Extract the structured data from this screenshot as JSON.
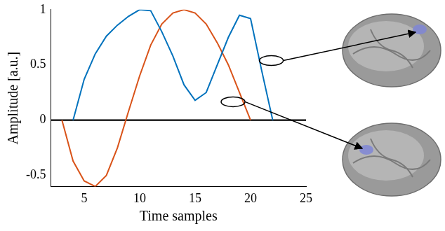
{
  "chart_data": {
    "type": "line",
    "x_label": "Time samples",
    "y_label": "Amplitude [a.u.]",
    "xlim": [
      2,
      25
    ],
    "xticks": [
      5,
      10,
      15,
      20,
      25
    ],
    "ylim": [
      -0.6,
      1
    ],
    "yticks": [
      -0.5,
      0,
      0.5,
      1
    ],
    "grid": false,
    "series": [
      {
        "color": "#0072bd",
        "x": [
          4,
          5,
          6,
          7,
          8,
          9,
          10,
          11,
          12,
          13,
          14,
          15,
          16,
          17,
          18,
          19,
          20,
          21,
          22
        ],
        "values": [
          0,
          0.37,
          0.6,
          0.76,
          0.86,
          0.94,
          1.0,
          0.99,
          0.8,
          0.58,
          0.32,
          0.18,
          0.25,
          0.5,
          0.75,
          0.95,
          0.92,
          0.45,
          0
        ]
      },
      {
        "color": "#d95319",
        "x": [
          3,
          4,
          5,
          6,
          7,
          8,
          9,
          10,
          11,
          12,
          13,
          14,
          15,
          16,
          17,
          18,
          19,
          20
        ],
        "values": [
          0,
          -0.37,
          -0.55,
          -0.6,
          -0.5,
          -0.25,
          0.08,
          0.4,
          0.68,
          0.87,
          0.97,
          1.0,
          0.97,
          0.87,
          0.7,
          0.5,
          0.25,
          0
        ]
      },
      {
        "color": "#000000",
        "x": [
          2,
          25
        ],
        "values": [
          0,
          0
        ]
      }
    ]
  }
}
